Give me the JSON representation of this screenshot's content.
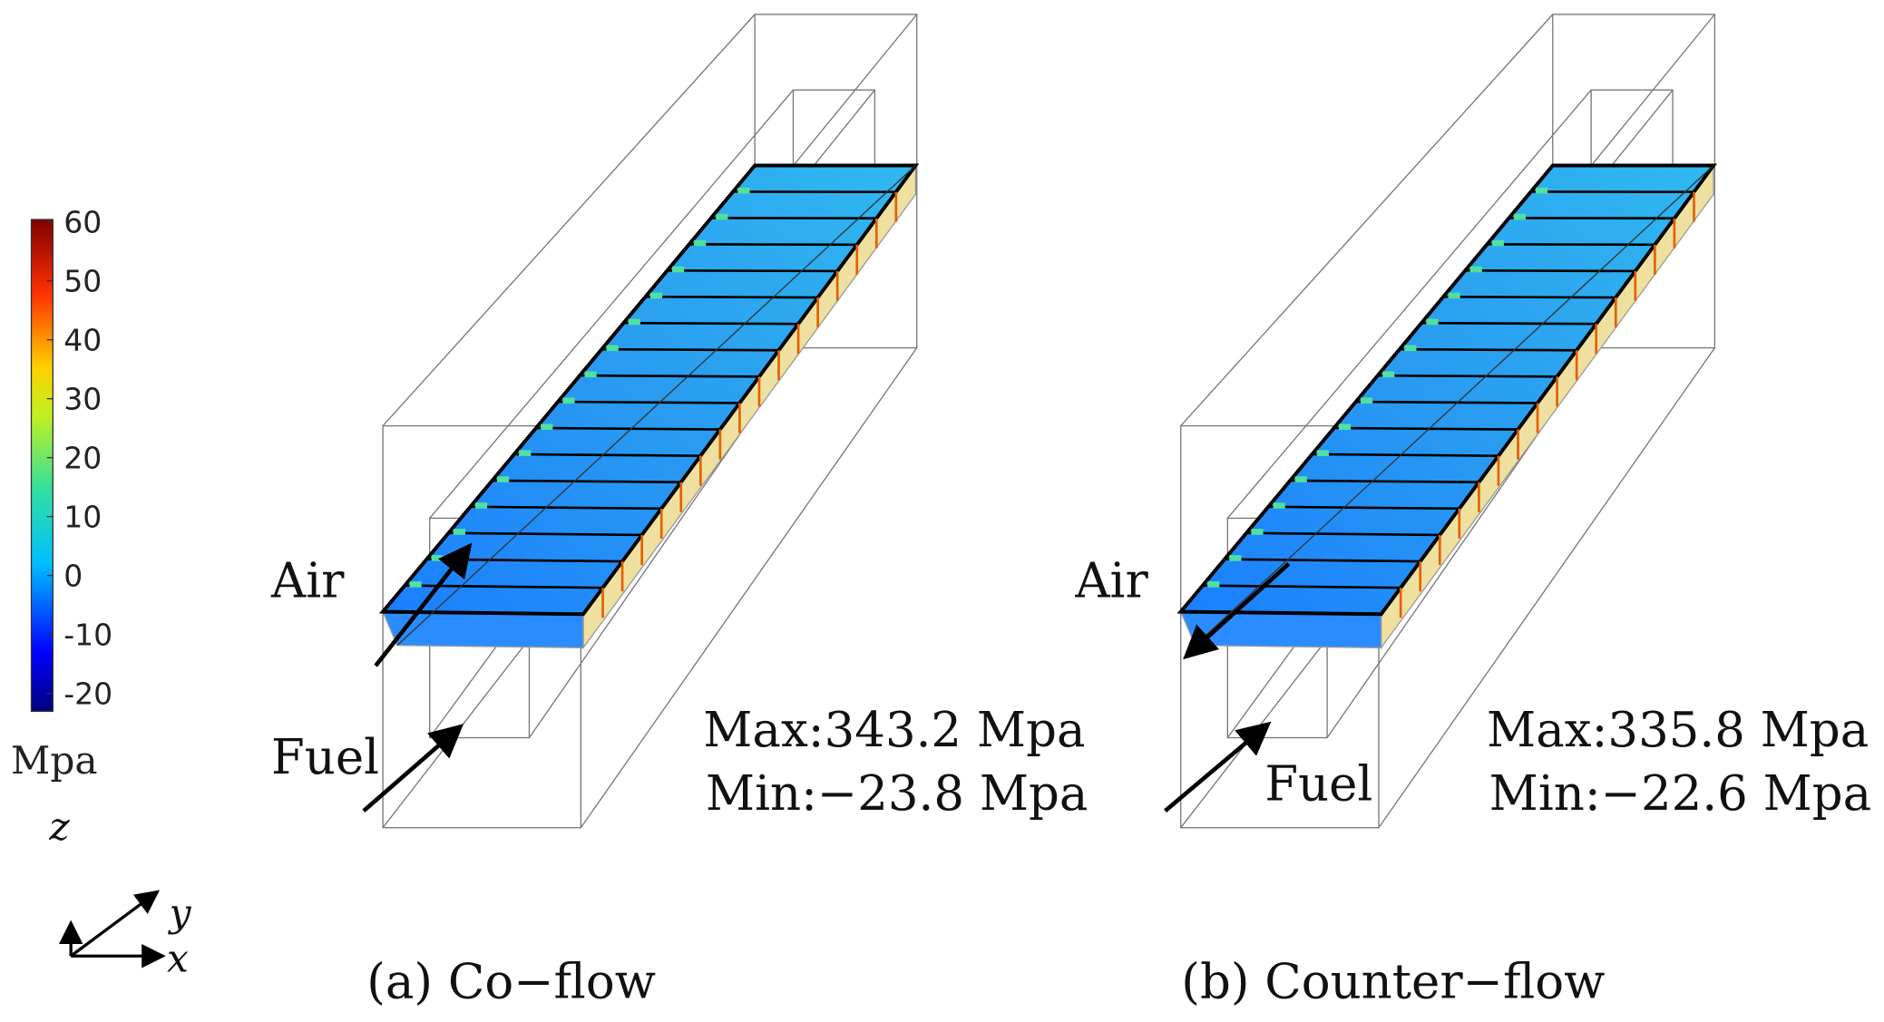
{
  "colorbar": {
    "ticks": [
      60,
      50,
      40,
      30,
      20,
      10,
      0,
      -10,
      -20
    ],
    "unit": "Mpa"
  },
  "axes": {
    "z": "z",
    "y": "y",
    "x": "x"
  },
  "panels": [
    {
      "caption": "(a) Co−flow",
      "air": "Air",
      "fuel": "Fuel",
      "max": "Max:343.2 Mpa",
      "min": "Min:−23.8 Mpa"
    },
    {
      "caption": "(b) Counter−flow",
      "air": "Air",
      "fuel": "Fuel",
      "max": "Max:335.8 Mpa",
      "min": "Min:−22.6 Mpa"
    }
  ]
}
